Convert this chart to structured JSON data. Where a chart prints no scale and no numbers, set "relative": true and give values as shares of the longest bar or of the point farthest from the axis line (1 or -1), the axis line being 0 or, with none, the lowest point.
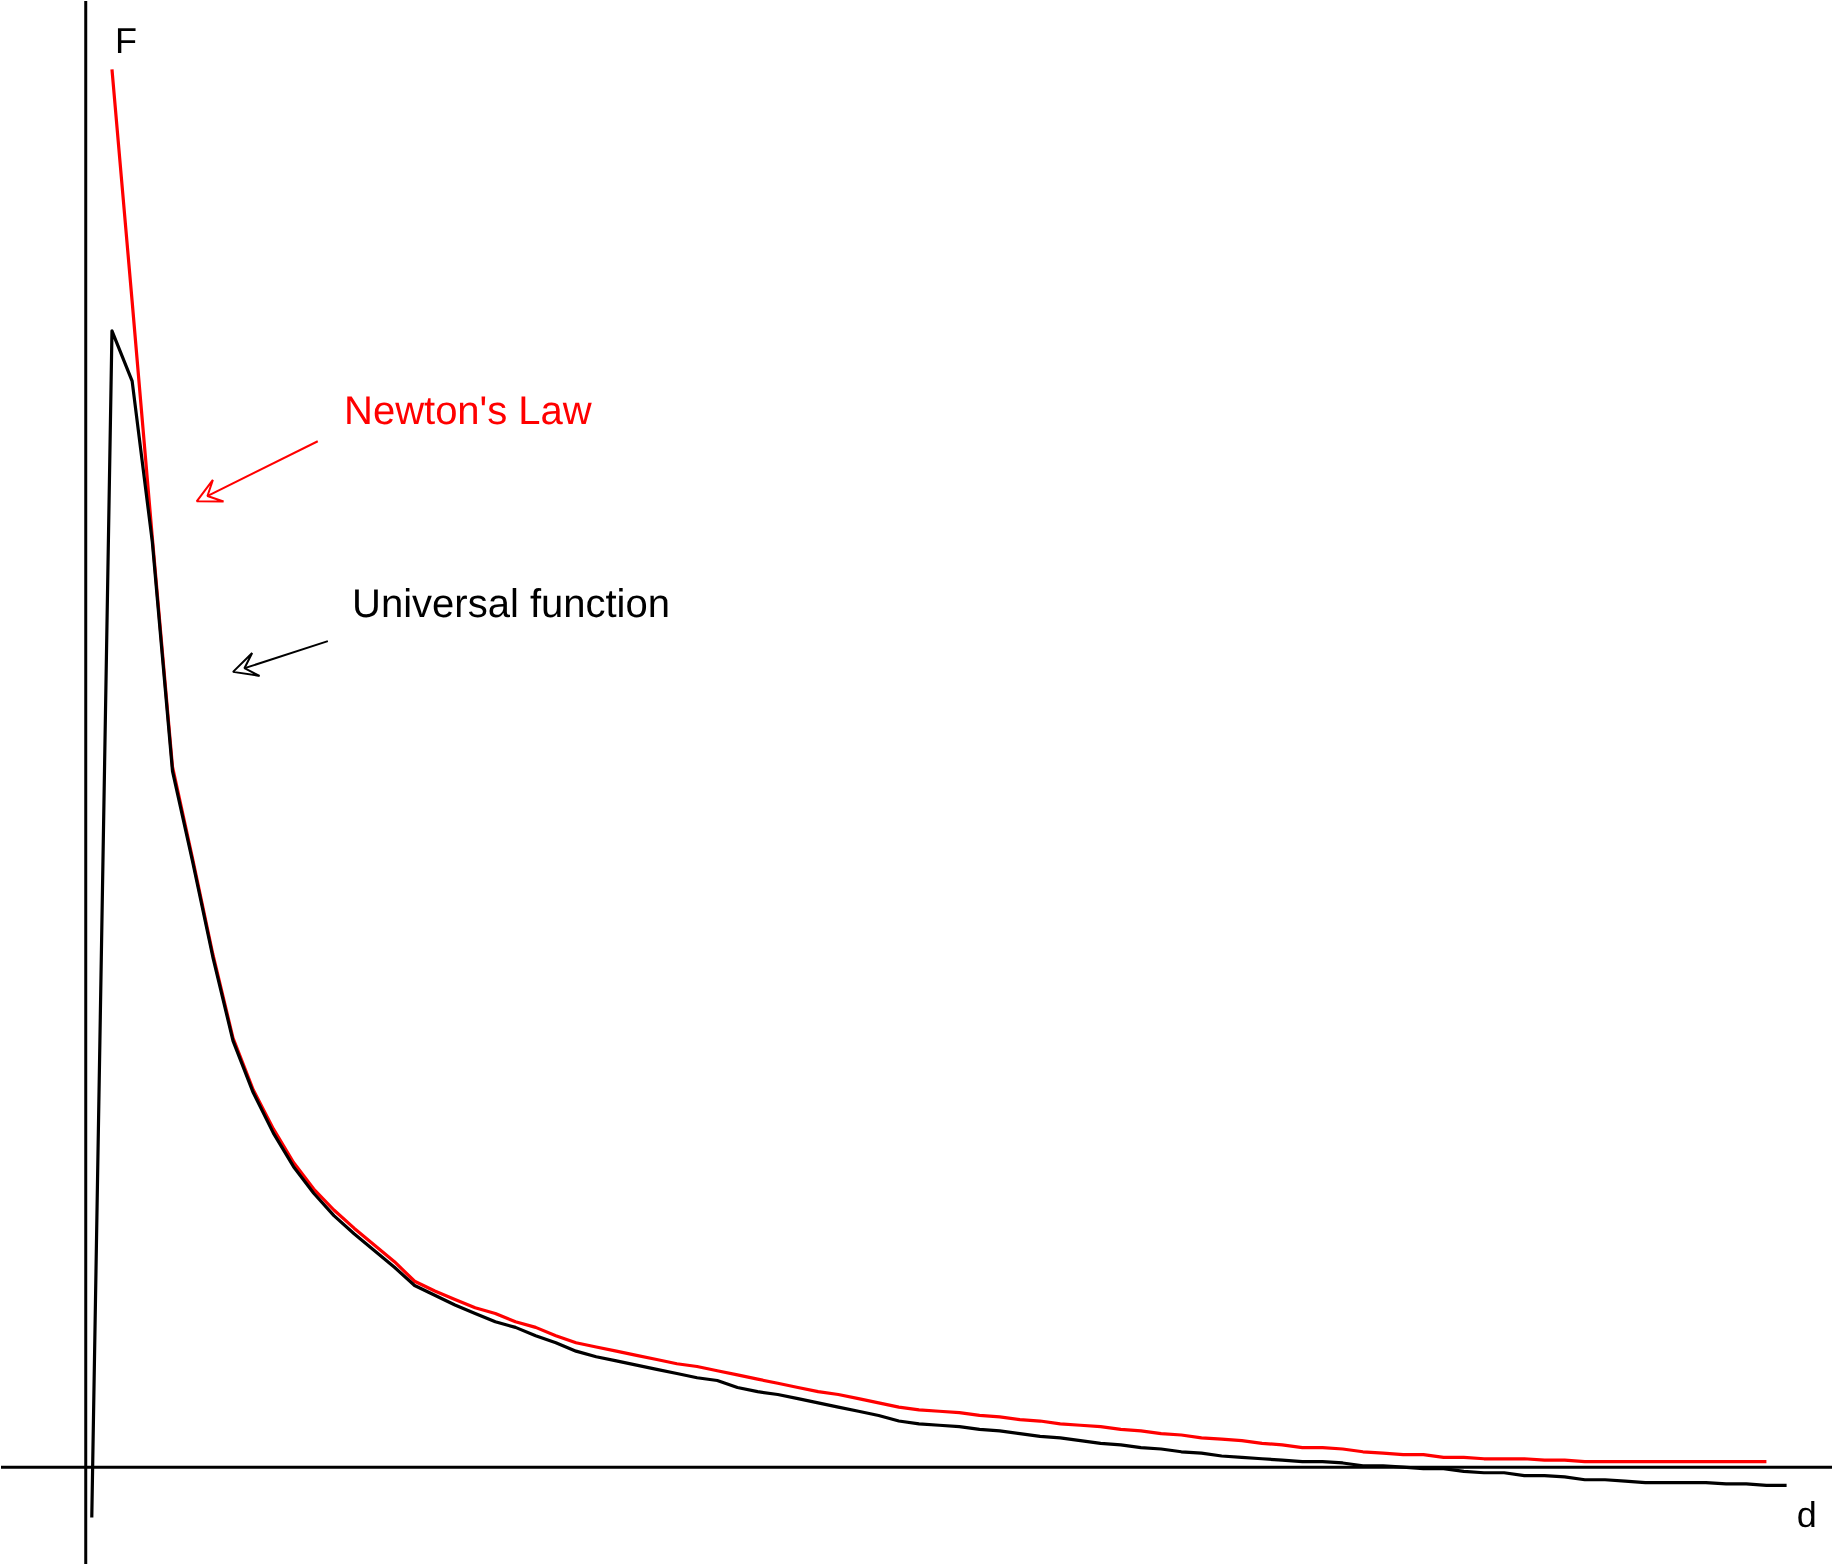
{
  "chart_data": {
    "type": "line",
    "relative": true,
    "xlabel": "d",
    "ylabel": "F",
    "marker": "none",
    "line_style": "solid",
    "categories": [
      null,
      null,
      null,
      null,
      null,
      null,
      null,
      null,
      null,
      null,
      null,
      null,
      null,
      null,
      null,
      null,
      null,
      null,
      null,
      null,
      null,
      null,
      null,
      null,
      null,
      null,
      null,
      null,
      null,
      null,
      null,
      null,
      null,
      null,
      null,
      null,
      null,
      null,
      null,
      null,
      null,
      null,
      null,
      null,
      null,
      null,
      null,
      null,
      null,
      null,
      null,
      null,
      null,
      null,
      null,
      null,
      null,
      null,
      null,
      null,
      null,
      null,
      null,
      null,
      null,
      null,
      null,
      null,
      null,
      null,
      null,
      null,
      null,
      null,
      null,
      null,
      null,
      null,
      null,
      null,
      null,
      null,
      null,
      null,
      null
    ],
    "series": [
      {
        "name": "Newton's Law",
        "color": "#ff0000",
        "values": [
          null,
          1.0,
          0.834,
          0.665,
          0.501,
          0.435,
          0.367,
          0.307,
          0.27,
          0.242,
          0.218,
          0.199,
          0.184,
          0.171,
          0.159,
          0.147,
          0.133,
          0.126,
          0.12,
          0.114,
          0.11,
          0.104,
          0.1,
          0.094,
          0.089,
          0.086,
          0.083,
          0.08,
          0.077,
          0.074,
          0.072,
          0.069,
          0.066,
          0.063,
          0.06,
          0.057,
          0.054,
          0.052,
          0.049,
          0.046,
          0.043,
          0.041,
          0.04,
          0.039,
          0.037,
          0.036,
          0.034,
          0.033,
          0.031,
          0.03,
          0.029,
          0.027,
          0.026,
          0.024,
          0.023,
          0.021,
          0.02,
          0.019,
          0.017,
          0.016,
          0.014,
          0.014,
          0.013,
          0.011,
          0.01,
          0.009,
          0.009,
          0.007,
          0.007,
          0.006,
          0.006,
          0.006,
          0.005,
          0.005,
          0.004,
          0.004,
          0.004,
          0.004,
          0.004,
          0.004,
          0.004,
          0.004,
          0.004,
          0.004,
          null
        ]
      },
      {
        "name": "Universal function",
        "color": "#000000",
        "values": [
          -0.036,
          0.813,
          0.777,
          0.662,
          0.498,
          0.433,
          0.365,
          0.305,
          0.268,
          0.239,
          0.215,
          0.196,
          0.18,
          0.167,
          0.155,
          0.143,
          0.13,
          0.123,
          0.116,
          0.11,
          0.104,
          0.1,
          0.094,
          0.089,
          0.083,
          0.079,
          0.076,
          0.073,
          0.07,
          0.067,
          0.064,
          0.062,
          0.057,
          0.054,
          0.052,
          0.049,
          0.046,
          0.043,
          0.04,
          0.037,
          0.033,
          0.031,
          0.03,
          0.029,
          0.027,
          0.026,
          0.024,
          0.022,
          0.021,
          0.019,
          0.017,
          0.016,
          0.014,
          0.013,
          0.011,
          0.01,
          0.008,
          0.007,
          0.006,
          0.005,
          0.004,
          0.004,
          0.003,
          0.001,
          0.001,
          0.0,
          -0.001,
          -0.001,
          -0.003,
          -0.004,
          -0.004,
          -0.006,
          -0.006,
          -0.007,
          -0.009,
          -0.009,
          -0.01,
          -0.011,
          -0.011,
          -0.011,
          -0.011,
          -0.012,
          -0.012,
          -0.013,
          -0.013
        ]
      }
    ]
  }
}
